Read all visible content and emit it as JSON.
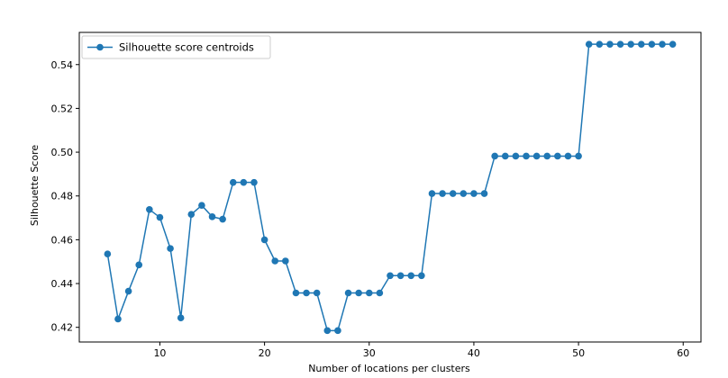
{
  "chart_data": {
    "type": "line",
    "title": "",
    "xlabel": "Number of locations per clusters",
    "ylabel": "Silhouette Score",
    "xlim": [
      2.3,
      61.7
    ],
    "ylim": [
      0.4133,
      0.5547
    ],
    "xticks": [
      10,
      20,
      30,
      40,
      50,
      60
    ],
    "yticks": [
      0.42,
      0.44,
      0.46,
      0.48,
      0.5,
      0.52,
      0.54
    ],
    "ytick_labels": [
      "0.42",
      "0.44",
      "0.46",
      "0.48",
      "0.50",
      "0.52",
      "0.54"
    ],
    "grid": false,
    "legend_position": "top-left",
    "series": [
      {
        "name": "Silhouette score centroids",
        "color": "#1f77b4",
        "marker": "circle",
        "x": [
          5,
          6,
          7,
          8,
          9,
          10,
          11,
          12,
          13,
          14,
          15,
          16,
          17,
          18,
          19,
          20,
          21,
          22,
          23,
          24,
          25,
          26,
          27,
          28,
          29,
          30,
          31,
          32,
          33,
          34,
          35,
          36,
          37,
          38,
          39,
          40,
          41,
          42,
          43,
          44,
          45,
          46,
          47,
          48,
          49,
          50,
          51,
          52,
          53,
          54,
          55,
          56,
          57,
          58,
          59
        ],
        "y": [
          0.4535,
          0.4238,
          0.4365,
          0.4485,
          0.4738,
          0.4702,
          0.456,
          0.4243,
          0.4716,
          0.4757,
          0.4705,
          0.4694,
          0.4862,
          0.4862,
          0.4862,
          0.46,
          0.4503,
          0.4503,
          0.4357,
          0.4357,
          0.4357,
          0.4185,
          0.4185,
          0.4357,
          0.4357,
          0.4357,
          0.4357,
          0.4436,
          0.4436,
          0.4436,
          0.4436,
          0.4811,
          0.4811,
          0.4811,
          0.4811,
          0.4811,
          0.4811,
          0.4982,
          0.4982,
          0.4982,
          0.4982,
          0.4982,
          0.4982,
          0.4982,
          0.4982,
          0.4982,
          0.5493,
          0.5493,
          0.5493,
          0.5493,
          0.5493,
          0.5493,
          0.5493,
          0.5493,
          0.5493
        ]
      }
    ]
  }
}
